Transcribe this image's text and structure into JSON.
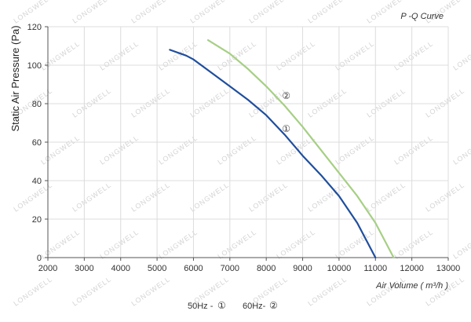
{
  "chart_data": {
    "type": "line",
    "title": "P -Q Curve",
    "xlabel": "Air Volume ( m³/h )",
    "ylabel": "Static Air Pressure  (Pa)",
    "xlim": [
      2000,
      13000
    ],
    "ylim": [
      0,
      120
    ],
    "xticks": [
      2000,
      3000,
      4000,
      5000,
      6000,
      7000,
      8000,
      9000,
      10000,
      11000,
      12000,
      13000
    ],
    "yticks": [
      0,
      20,
      40,
      60,
      80,
      100,
      120
    ],
    "grid": true,
    "series": [
      {
        "name": "①",
        "color": "#1f4e9c",
        "x": [
          5350,
          5800,
          6000,
          6500,
          7000,
          7500,
          8000,
          8500,
          9000,
          9500,
          10000,
          10500,
          11000
        ],
        "y": [
          108,
          105,
          103,
          96,
          89,
          82,
          74,
          64,
          53,
          43,
          32,
          18,
          0
        ]
      },
      {
        "name": "②",
        "color": "#a6cf84",
        "x": [
          6400,
          7000,
          7500,
          8000,
          8500,
          9000,
          9500,
          10000,
          10500,
          11000,
          11500
        ],
        "y": [
          113,
          106,
          98,
          89,
          79,
          68,
          56,
          44,
          32,
          18,
          0
        ]
      }
    ],
    "annotations": [
      {
        "text": "②",
        "x": 8550,
        "y": 84
      },
      {
        "text": "①",
        "x": 8550,
        "y": 67
      }
    ],
    "legend_text": [
      {
        "label": "50Hz -",
        "symbol": "①"
      },
      {
        "label": "60Hz-",
        "symbol": "②"
      }
    ],
    "watermark": "LONGWELL"
  }
}
